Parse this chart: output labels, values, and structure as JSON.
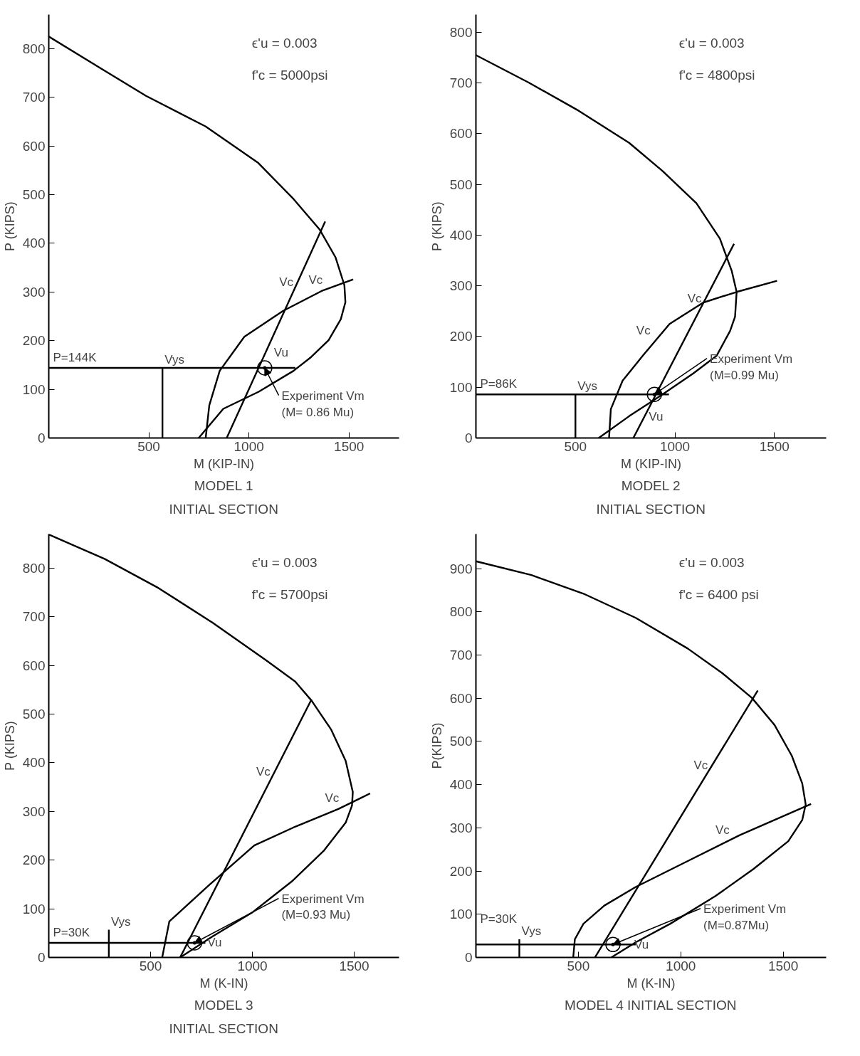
{
  "chart_data": [
    {
      "type": "line",
      "title": "MODEL 1",
      "subtitle": "INITIAL SECTION",
      "xlabel": "M (KIP-IN)",
      "ylabel": "P (KIPS)",
      "xlim": [
        0,
        1750
      ],
      "ylim": [
        0,
        870
      ],
      "xticks": [
        500,
        1000,
        1500
      ],
      "yticks": [
        0,
        100,
        200,
        300,
        400,
        500,
        600,
        700,
        800
      ],
      "grid": false,
      "series": [
        {
          "color": "#000000",
          "x": [
            0,
            258,
            486,
            784,
            1047,
            1223,
            1354,
            1433,
            1477,
            1482,
            1459,
            1398,
            1310,
            1223,
            1049,
            872,
            749
          ],
          "values": [
            825,
            760,
            703,
            640,
            565,
            491,
            428,
            371,
            314,
            279,
            244,
            201,
            166,
            138,
            95,
            60,
            0
          ]
        },
        {
          "name": "Vc",
          "color": "#000000",
          "x": [
            889,
            1381
          ],
          "values": [
            0,
            445
          ]
        },
        {
          "name": "Vc",
          "color": "#000000",
          "x": [
            784,
            802,
            854,
            977,
            1170,
            1363,
            1521
          ],
          "values": [
            0,
            67,
            138,
            208,
            261,
            302,
            326
          ]
        },
        {
          "color": "#000000",
          "x": [
            0,
            1232
          ],
          "values": [
            144,
            144
          ]
        },
        {
          "name": "Vys",
          "color": "#000000",
          "x": [
            568,
            568
          ],
          "values": [
            0,
            144
          ]
        },
        {
          "type": "scatter",
          "marker": "circle",
          "color": "#000000",
          "x": [
            1079
          ],
          "values": [
            144
          ]
        }
      ],
      "annotations": [
        {
          "text": "P=144K",
          "x": 0,
          "y": 144
        },
        {
          "text": "Vu",
          "x": 1232,
          "y": 144
        },
        {
          "text": "Experiment Vm\n(M= 0.86 Mu)",
          "x": 1079,
          "y": 144
        },
        "ϵ'u = 0.003",
        "f'c = 5000psi"
      ]
    },
    {
      "type": "line",
      "title": "MODEL 2",
      "subtitle": "INITIAL SECTION",
      "xlabel": "M (KIP-IN)",
      "ylabel": "P (KIPS)",
      "xlim": [
        0,
        1760
      ],
      "ylim": [
        0,
        835
      ],
      "xticks": [
        500,
        1000,
        1500
      ],
      "yticks": [
        0,
        100,
        200,
        300,
        400,
        500,
        600,
        700,
        800
      ],
      "grid": false,
      "series": [
        {
          "color": "#000000",
          "x": [
            0,
            265,
            518,
            770,
            939,
            1108,
            1226,
            1285,
            1310,
            1302,
            1277,
            1209,
            1091,
            923,
            770,
            617
          ],
          "values": [
            755,
            701,
            645,
            582,
            526,
            463,
            393,
            330,
            288,
            239,
            211,
            162,
            127,
            82,
            43,
            0
          ]
        },
        {
          "name": "Vc",
          "color": "#000000",
          "x": [
            791,
            1297
          ],
          "values": [
            0,
            383
          ]
        },
        {
          "name": "Vc",
          "color": "#000000",
          "x": [
            669,
            678,
            737,
            838,
            973,
            1142,
            1310,
            1513
          ],
          "values": [
            0,
            57,
            113,
            162,
            225,
            267,
            288,
            310
          ]
        },
        {
          "color": "#000000",
          "x": [
            0,
            970
          ],
          "values": [
            86,
            86
          ]
        },
        {
          "name": "Vys",
          "color": "#000000",
          "x": [
            500,
            500
          ],
          "values": [
            0,
            86
          ]
        },
        {
          "type": "scatter",
          "marker": "circle",
          "color": "#000000",
          "x": [
            897
          ],
          "values": [
            86
          ]
        }
      ],
      "annotations": [
        {
          "text": "P=86K",
          "x": 0,
          "y": 86
        },
        {
          "text": "Vu",
          "x": 897,
          "y": 86
        },
        {
          "text": "Experiment Vm\n(M=0.99 Mu)",
          "x": 897,
          "y": 86
        },
        "ϵ'u = 0.003",
        "f'c = 4800psi"
      ]
    },
    {
      "type": "line",
      "title": "MODEL 3",
      "subtitle": "INITIAL SECTION",
      "xlabel": "M (K-IN)",
      "ylabel": "P (KIPS)",
      "xlim": [
        0,
        1720
      ],
      "ylim": [
        0,
        870
      ],
      "xticks": [
        500,
        1000,
        1500
      ],
      "yticks": [
        0,
        100,
        200,
        300,
        400,
        500,
        600,
        700,
        800
      ],
      "grid": false,
      "series": [
        {
          "color": "#000000",
          "x": [
            0,
            274,
            539,
            804,
            1069,
            1210,
            1290,
            1387,
            1458,
            1493,
            1489,
            1458,
            1352,
            1193,
            998,
            804,
            645
          ],
          "values": [
            869,
            819,
            759,
            688,
            610,
            567,
            528,
            468,
            404,
            340,
            312,
            277,
            220,
            156,
            92,
            43,
            0
          ]
        },
        {
          "name": "Vc",
          "color": "#000000",
          "x": [
            645,
            1290
          ],
          "values": [
            0,
            530
          ]
        },
        {
          "name": "Vc",
          "color": "#000000",
          "x": [
            557,
            592,
            788,
            1009,
            1212,
            1422,
            1578
          ],
          "values": [
            0,
            74,
            149,
            230,
            269,
            305,
            337
          ]
        },
        {
          "color": "#000000",
          "x": [
            0,
            769
          ],
          "values": [
            30,
            30
          ]
        },
        {
          "name": "Vys",
          "color": "#000000",
          "x": [
            295,
            295
          ],
          "values": [
            0,
            57
          ]
        },
        {
          "type": "scatter",
          "marker": "circle",
          "color": "#000000",
          "x": [
            716
          ],
          "values": [
            30
          ]
        }
      ],
      "annotations": [
        {
          "text": "P=30K",
          "x": 0,
          "y": 30
        },
        {
          "text": "Vu",
          "x": 716,
          "y": 30
        },
        {
          "text": "Experiment Vm\n(M=0.93 Mu)",
          "x": 716,
          "y": 30
        },
        "ϵ'u = 0.003",
        "f'c = 5700psi"
      ]
    },
    {
      "type": "line",
      "title": "MODEL 4 INITIAL SECTION",
      "xlabel": "M (K-IN)",
      "ylabel": "P(KIPS)",
      "xlim": [
        0,
        1710
      ],
      "ylim": [
        0,
        980
      ],
      "xticks": [
        500,
        1000,
        1500
      ],
      "yticks": [
        0,
        100,
        200,
        300,
        400,
        500,
        600,
        700,
        800,
        900
      ],
      "grid": false,
      "series": [
        {
          "color": "#000000",
          "x": [
            0,
            271,
            525,
            780,
            1034,
            1203,
            1347,
            1458,
            1542,
            1593,
            1610,
            1593,
            1525,
            1356,
            1169,
            949,
            780,
            661
          ],
          "values": [
            917,
            885,
            842,
            786,
            715,
            658,
            601,
            538,
            467,
            403,
            354,
            318,
            269,
            205,
            142,
            78,
            35,
            0
          ]
        },
        {
          "name": "Vc",
          "color": "#000000",
          "x": [
            581,
            1376
          ],
          "values": [
            0,
            618
          ]
        },
        {
          "name": "Vc",
          "color": "#000000",
          "x": [
            475,
            483,
            525,
            627,
            780,
            1017,
            1288,
            1636
          ],
          "values": [
            0,
            42,
            78,
            120,
            163,
            219,
            283,
            355
          ]
        },
        {
          "color": "#000000",
          "x": [
            0,
            780
          ],
          "values": [
            30,
            30
          ]
        },
        {
          "name": "Vys",
          "color": "#000000",
          "x": [
            212,
            212
          ],
          "values": [
            0,
            42
          ]
        },
        {
          "type": "scatter",
          "marker": "circle",
          "color": "#000000",
          "x": [
            669
          ],
          "values": [
            30
          ]
        }
      ],
      "annotations": [
        {
          "text": "P=30K",
          "x": 0,
          "y": 30
        },
        {
          "text": "Vu",
          "x": 669,
          "y": 30
        },
        {
          "text": "Experiment Vm\n(M=0.87Mu)",
          "x": 669,
          "y": 30
        },
        "ϵ'u = 0.003",
        "f'c = 6400 psi"
      ]
    }
  ]
}
